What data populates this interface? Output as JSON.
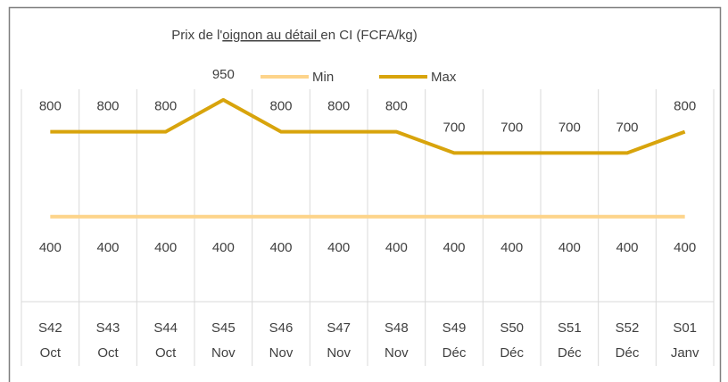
{
  "chart_data": {
    "type": "line",
    "title_parts": [
      "Prix de l'",
      "oignon au détail ",
      "en CI (FCFA/kg)"
    ],
    "categories": [
      "S42",
      "S43",
      "S44",
      "S45",
      "S46",
      "S47",
      "S48",
      "S49",
      "S50",
      "S51",
      "S52",
      "S01"
    ],
    "months": [
      "Oct",
      "Oct",
      "Oct",
      "Nov",
      "Nov",
      "Nov",
      "Nov",
      "Déc",
      "Déc",
      "Déc",
      "Déc",
      "Janv"
    ],
    "series": [
      {
        "name": "Min",
        "color": "#fdd48a",
        "values": [
          400,
          400,
          400,
          400,
          400,
          400,
          400,
          400,
          400,
          400,
          400,
          400
        ]
      },
      {
        "name": "Max",
        "color": "#d8a40c",
        "values": [
          800,
          800,
          800,
          950,
          800,
          800,
          800,
          700,
          700,
          700,
          700,
          800
        ]
      }
    ],
    "ylim": [
      0,
      1000
    ],
    "legend": "top",
    "grid": true
  }
}
